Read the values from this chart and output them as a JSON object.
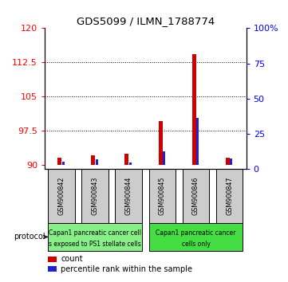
{
  "title": "GDS5099 / ILMN_1788774",
  "samples": [
    "GSM900842",
    "GSM900843",
    "GSM900844",
    "GSM900845",
    "GSM900846",
    "GSM900847"
  ],
  "count_values": [
    91.5,
    92.0,
    92.3,
    99.5,
    114.2,
    91.5
  ],
  "percentile_values": [
    2.0,
    3.5,
    1.5,
    9.5,
    33.0,
    4.0
  ],
  "ylim_left": [
    89,
    120
  ],
  "ylim_right": [
    0,
    100
  ],
  "yticks_left": [
    90,
    97.5,
    105,
    112.5,
    120
  ],
  "yticks_right": [
    0,
    25,
    50,
    75,
    100
  ],
  "ytick_labels_right": [
    "0",
    "25",
    "50",
    "75",
    "100%"
  ],
  "bar_base": 90,
  "group1_label_line1": "Capan1 pancreatic cancer cell",
  "group1_label_line2": "s exposed to PS1 stellate cells",
  "group2_label_line1": "Capan1 pancreatic cancer",
  "group2_label_line2": "cells only",
  "group1_color": "#88ee88",
  "group2_color": "#44dd44",
  "bar_bg_color": "#cccccc",
  "count_color": "#cc0000",
  "percentile_color": "#2222cc",
  "count_bar_width": 0.12,
  "percentile_bar_width": 0.07,
  "bg_bar_width": 0.8
}
